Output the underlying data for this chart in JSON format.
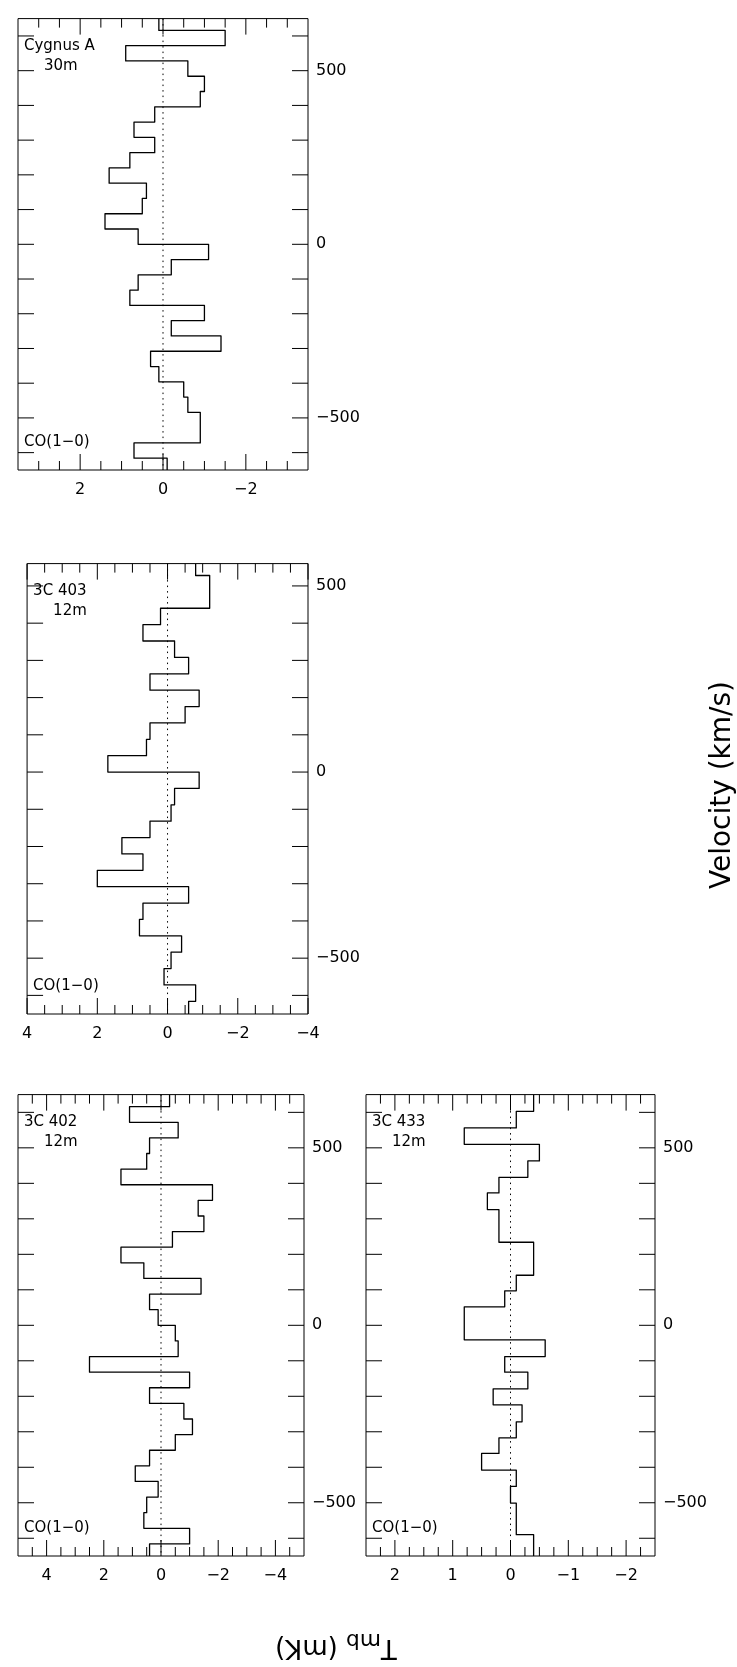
{
  "chart_data": [
    {
      "type": "step",
      "xlabel": "T$_{mb}$ (mK)",
      "annotations": [
        "CO(1−0)",
        "3C 402",
        "12m"
      ],
      "color": "#000000",
      "values": [
        -650,
        -616,
        -572,
        -528,
        -484,
        -440,
        -396,
        -352,
        -308,
        -264,
        -220,
        -176,
        -132,
        -88,
        -44,
        0,
        44,
        88,
        132,
        176,
        220,
        264,
        308,
        352,
        396,
        440,
        484,
        528,
        572,
        616,
        650
      ],
      "x": [
        0.4,
        -1.0,
        0.6,
        0.5,
        0.1,
        0.9,
        0.4,
        -0.5,
        -1.1,
        -0.8,
        0.4,
        -1.0,
        2.5,
        -0.6,
        -0.5,
        0.1,
        0.4,
        -1.4,
        0.6,
        1.4,
        -0.4,
        -1.5,
        -1.3,
        -1.8,
        1.4,
        0.5,
        0.4,
        -0.6,
        1.1,
        -0.3,
        -0.3
      ],
      "ylim": [
        -650,
        650
      ],
      "xlim": [
        5,
        -5
      ],
      "yticks": [
        {
          "value": -600,
          "label": null
        },
        -500,
        {
          "value": -400,
          "label": null
        },
        {
          "value": -300,
          "label": null
        },
        {
          "value": -200,
          "label": null
        },
        {
          "value": -100,
          "label": null
        },
        0,
        {
          "value": 100,
          "label": null
        },
        {
          "value": 200,
          "label": null
        },
        {
          "value": 300,
          "label": null
        },
        {
          "value": 400,
          "label": null
        },
        500,
        {
          "value": 600,
          "label": null
        }
      ],
      "xticks": [
        {
          "value": 4.5,
          "label": null
        },
        4,
        {
          "value": 3.5,
          "label": null
        },
        {
          "value": 3,
          "label": null
        },
        {
          "value": 2.5,
          "label": null
        },
        2,
        {
          "value": 1.5,
          "label": null
        },
        {
          "value": 1,
          "label": null
        },
        {
          "value": 0.5,
          "label": null
        },
        0,
        {
          "value": -0.5,
          "label": null
        },
        {
          "value": -1,
          "label": null
        },
        {
          "value": -1.5,
          "label": null
        },
        -2,
        {
          "value": -2.5,
          "label": null
        },
        {
          "value": -3,
          "label": null
        },
        {
          "value": -3.5,
          "label": null
        },
        -4,
        {
          "value": -4.5,
          "label": null
        }
      ],
      "ref_lines": [
        {
          "axis": "x",
          "value": 0,
          "line_style": "dotted"
        }
      ]
    },
    {
      "type": "step",
      "ylabel": "Velocity (km/s)",
      "annotations": [
        "CO(1−0)",
        "3C 403",
        "12m"
      ],
      "color": "#000000",
      "values": [
        -650,
        -616,
        -572,
        -528,
        -484,
        -440,
        -396,
        -352,
        -308,
        -264,
        -220,
        -176,
        -132,
        -88,
        -44,
        0,
        44,
        88,
        132,
        176,
        220,
        264,
        308,
        352,
        396,
        440,
        484,
        528,
        560
      ],
      "x": [
        -0.6,
        -0.8,
        0.1,
        -0.1,
        -0.4,
        0.8,
        0.7,
        -0.6,
        2.0,
        0.7,
        1.3,
        0.5,
        -0.1,
        -0.2,
        -0.9,
        1.7,
        0.6,
        0.5,
        -0.5,
        -0.9,
        0.5,
        -0.6,
        -0.2,
        0.7,
        0.2,
        -1.2,
        -1.2,
        -0.8,
        -0.8
      ],
      "ylim": [
        -650,
        560
      ],
      "xlim": [
        4,
        -4
      ],
      "yticks": [
        {
          "value": -600,
          "label": null
        },
        -500,
        {
          "value": -400,
          "label": null
        },
        {
          "value": -300,
          "label": null
        },
        {
          "value": -200,
          "label": null
        },
        {
          "value": -100,
          "label": null
        },
        0,
        {
          "value": 100,
          "label": null
        },
        {
          "value": 200,
          "label": null
        },
        {
          "value": 300,
          "label": null
        },
        {
          "value": 400,
          "label": null
        },
        500
      ],
      "xticks": [
        4,
        {
          "value": 3.5,
          "label": null
        },
        {
          "value": 3,
          "label": null
        },
        {
          "value": 2.5,
          "label": null
        },
        2,
        {
          "value": 1.5,
          "label": null
        },
        {
          "value": 1,
          "label": null
        },
        {
          "value": 0.5,
          "label": null
        },
        0,
        {
          "value": -0.5,
          "label": null
        },
        {
          "value": -1,
          "label": null
        },
        {
          "value": -1.5,
          "label": null
        },
        -2,
        {
          "value": -2.5,
          "label": null
        },
        {
          "value": -3,
          "label": null
        },
        {
          "value": -3.5,
          "label": null
        },
        -4
      ],
      "ref_lines": [
        {
          "axis": "x",
          "value": 0,
          "line_style": "dotted"
        }
      ]
    },
    {
      "type": "step",
      "annotations": [
        "CO(1−0)",
        "Cygnus A",
        "30m"
      ],
      "color": "#000000",
      "values": [
        -650,
        -616,
        -572,
        -528,
        -484,
        -440,
        -396,
        -352,
        -308,
        -264,
        -220,
        -176,
        -132,
        -88,
        -44,
        0,
        44,
        88,
        132,
        176,
        220,
        264,
        308,
        352,
        396,
        440,
        484,
        528,
        572,
        616,
        650
      ],
      "x": [
        -0.1,
        0.7,
        -0.9,
        -0.9,
        -0.6,
        -0.5,
        0.1,
        0.3,
        -1.4,
        -0.2,
        -1.0,
        0.8,
        0.6,
        -0.2,
        -1.1,
        0.6,
        1.4,
        0.5,
        0.4,
        1.3,
        0.8,
        0.2,
        0.7,
        0.2,
        -0.9,
        -1.0,
        -0.6,
        0.9,
        -1.5,
        0.1,
        0.1
      ],
      "ylim": [
        -650,
        650
      ],
      "xlim": [
        3.5,
        -3.5
      ],
      "yticks": [
        {
          "value": -600,
          "label": null
        },
        -500,
        {
          "value": -400,
          "label": null
        },
        {
          "value": -300,
          "label": null
        },
        {
          "value": -200,
          "label": null
        },
        {
          "value": -100,
          "label": null
        },
        0,
        {
          "value": 100,
          "label": null
        },
        {
          "value": 200,
          "label": null
        },
        {
          "value": 300,
          "label": null
        },
        {
          "value": 400,
          "label": null
        },
        500,
        {
          "value": 600,
          "label": null
        }
      ],
      "xticks": [
        {
          "value": 3,
          "label": null
        },
        {
          "value": 2.5,
          "label": null
        },
        2,
        {
          "value": 1.5,
          "label": null
        },
        {
          "value": 1,
          "label": null
        },
        {
          "value": 0.5,
          "label": null
        },
        0,
        {
          "value": -0.5,
          "label": null
        },
        {
          "value": -1,
          "label": null
        },
        {
          "value": -1.5,
          "label": null
        },
        -2,
        {
          "value": -2.5,
          "label": null
        },
        {
          "value": -3,
          "label": null
        }
      ],
      "ref_lines": [
        {
          "axis": "x",
          "value": 0,
          "line_style": "dotted"
        }
      ]
    },
    {
      "type": "step",
      "annotations": [
        "CO(1−0)",
        "3C 433",
        "12m"
      ],
      "color": "#000000",
      "values": [
        -650,
        -590,
        -501,
        -454,
        -408,
        -361,
        -317,
        -272,
        -224,
        -179,
        -132,
        -88,
        -41,
        52,
        97,
        141,
        188,
        234,
        326,
        373,
        417,
        463,
        510,
        556,
        603,
        650
      ],
      "x": [
        -0.4,
        -0.1,
        0.0,
        -0.1,
        0.5,
        0.2,
        -0.1,
        -0.2,
        0.3,
        -0.3,
        0.1,
        -0.6,
        0.8,
        0.1,
        -0.1,
        -0.4,
        -0.4,
        0.2,
        0.4,
        0.2,
        -0.3,
        -0.5,
        0.8,
        -0.1,
        -0.4,
        -0.4
      ],
      "ylim": [
        -650,
        650
      ],
      "xlim": [
        2.5,
        -2.5
      ],
      "yticks": [
        {
          "value": -600,
          "label": null
        },
        -500,
        {
          "value": -400,
          "label": null
        },
        {
          "value": -300,
          "label": null
        },
        {
          "value": -200,
          "label": null
        },
        {
          "value": -100,
          "label": null
        },
        0,
        {
          "value": 100,
          "label": null
        },
        {
          "value": 200,
          "label": null
        },
        {
          "value": 300,
          "label": null
        },
        {
          "value": 400,
          "label": null
        },
        500,
        {
          "value": 600,
          "label": null
        }
      ],
      "xticks": [
        {
          "value": 2.25,
          "label": null
        },
        2,
        {
          "value": 1.75,
          "label": null
        },
        {
          "value": 1.5,
          "label": null
        },
        {
          "value": 1.25,
          "label": null
        },
        1,
        {
          "value": 0.75,
          "label": null
        },
        {
          "value": 0.5,
          "label": null
        },
        {
          "value": 0.25,
          "label": null
        },
        0,
        {
          "value": -0.25,
          "label": null
        },
        {
          "value": -0.5,
          "label": null
        },
        {
          "value": -0.75,
          "label": null
        },
        -1,
        {
          "value": -1.25,
          "label": null
        },
        {
          "value": -1.5,
          "label": null
        },
        {
          "value": -1.75,
          "label": null
        },
        -2,
        {
          "value": -2.25,
          "label": null
        }
      ],
      "ref_lines": [
        {
          "axis": "x",
          "value": 0,
          "line_style": "dotted"
        }
      ]
    }
  ]
}
